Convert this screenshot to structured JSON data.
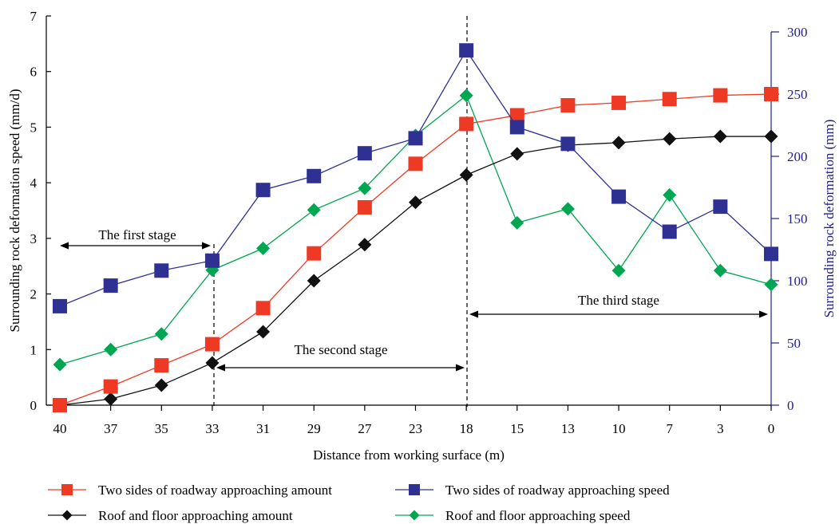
{
  "chart_data": {
    "type": "line",
    "xlabel": "Distance from working surface (m)",
    "ylabel": "Surrounding rock deformation speed (mm/d)",
    "y2label": "Surrounding rock deformation (mm)",
    "categories": [
      "40",
      "37",
      "35",
      "33",
      "31",
      "29",
      "27",
      "23",
      "18",
      "15",
      "13",
      "10",
      "7",
      "3",
      "0"
    ],
    "ylim": [
      0,
      7
    ],
    "yticks": [
      "0",
      "1",
      "2",
      "3",
      "4",
      "5",
      "6",
      "7"
    ],
    "y2lim": [
      0,
      300
    ],
    "y2ticks": [
      "0",
      "50",
      "100",
      "150",
      "200",
      "250",
      "300"
    ],
    "series": [
      {
        "name": "Two sides of roadway approaching amount",
        "axis": "right",
        "marker": "square",
        "color": "#ee3a24",
        "values": [
          0,
          15,
          32,
          49,
          78,
          122,
          159,
          194,
          226,
          233,
          241,
          243,
          246,
          249,
          250
        ]
      },
      {
        "name": "Two sides of roadway approaching speed",
        "axis": "left",
        "marker": "square",
        "color": "#2e3192",
        "values": [
          1.78,
          2.15,
          2.42,
          2.6,
          3.87,
          4.12,
          4.53,
          4.8,
          6.38,
          5.0,
          4.7,
          3.75,
          3.12,
          3.57,
          2.72
        ]
      },
      {
        "name": "Roof and floor approaching amount",
        "axis": "right",
        "marker": "diamond",
        "color": "#111111",
        "values": [
          0,
          5,
          16,
          34,
          59,
          100,
          129,
          163,
          185,
          202,
          209,
          211,
          214,
          216,
          216
        ]
      },
      {
        "name": "Roof and floor approaching speed",
        "axis": "left",
        "marker": "diamond",
        "color": "#00a651",
        "values": [
          0.73,
          1.0,
          1.28,
          2.43,
          2.82,
          3.51,
          3.9,
          4.85,
          5.57,
          3.28,
          3.53,
          2.42,
          3.78,
          2.42,
          2.17
        ]
      }
    ],
    "annotations": {
      "first_stage": "The first stage",
      "second_stage": "The second stage",
      "third_stage": "The third stage"
    },
    "legend_position": "bottom",
    "grid": false
  }
}
